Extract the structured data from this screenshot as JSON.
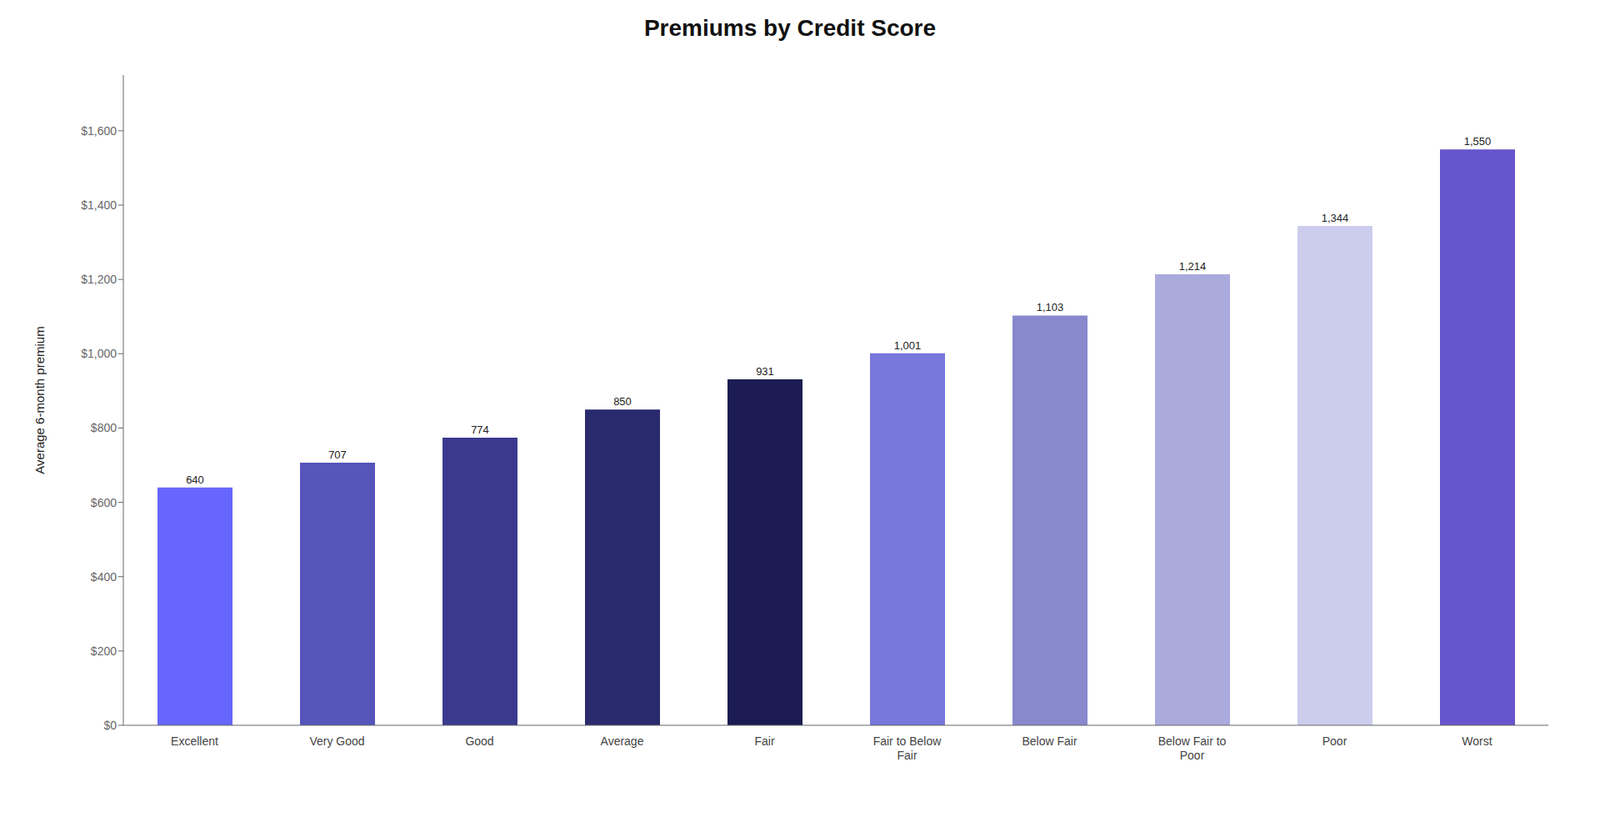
{
  "chart_data": {
    "type": "bar",
    "title": "Premiums by Credit Score",
    "ylabel": "Average 6-month premium",
    "categories": [
      "Excellent",
      "Very Good",
      "Good",
      "Average",
      "Fair",
      "Fair to Below\nFair",
      "Below Fair",
      "Below Fair to\nPoor",
      "Poor",
      "Worst"
    ],
    "values": [
      640,
      707,
      774,
      850,
      931,
      1001,
      1103,
      1214,
      1344,
      1550
    ],
    "value_labels": [
      "640",
      "707",
      "774",
      "850",
      "931",
      "1,001",
      "1,103",
      "1,214",
      "1,344",
      "1,550"
    ],
    "colors": [
      "#6666ff",
      "#5555bb",
      "#3a3a8f",
      "#2a2a6e",
      "#1c1c52",
      "#7777dd",
      "#8888cc",
      "#aaaadd",
      "#ccccee",
      "#6655cc"
    ],
    "ylim": [
      0,
      1750
    ],
    "yticks": [
      {
        "value": 0,
        "label": "$0"
      },
      {
        "value": 200,
        "label": "$200"
      },
      {
        "value": 400,
        "label": "$400"
      },
      {
        "value": 600,
        "label": "$600"
      },
      {
        "value": 800,
        "label": "$800"
      },
      {
        "value": 1000,
        "label": "$1,000"
      },
      {
        "value": 1200,
        "label": "$1,200"
      },
      {
        "value": 1400,
        "label": "$1,400"
      },
      {
        "value": 1600,
        "label": "$1,600"
      }
    ],
    "grid": false,
    "data_labels": true
  }
}
